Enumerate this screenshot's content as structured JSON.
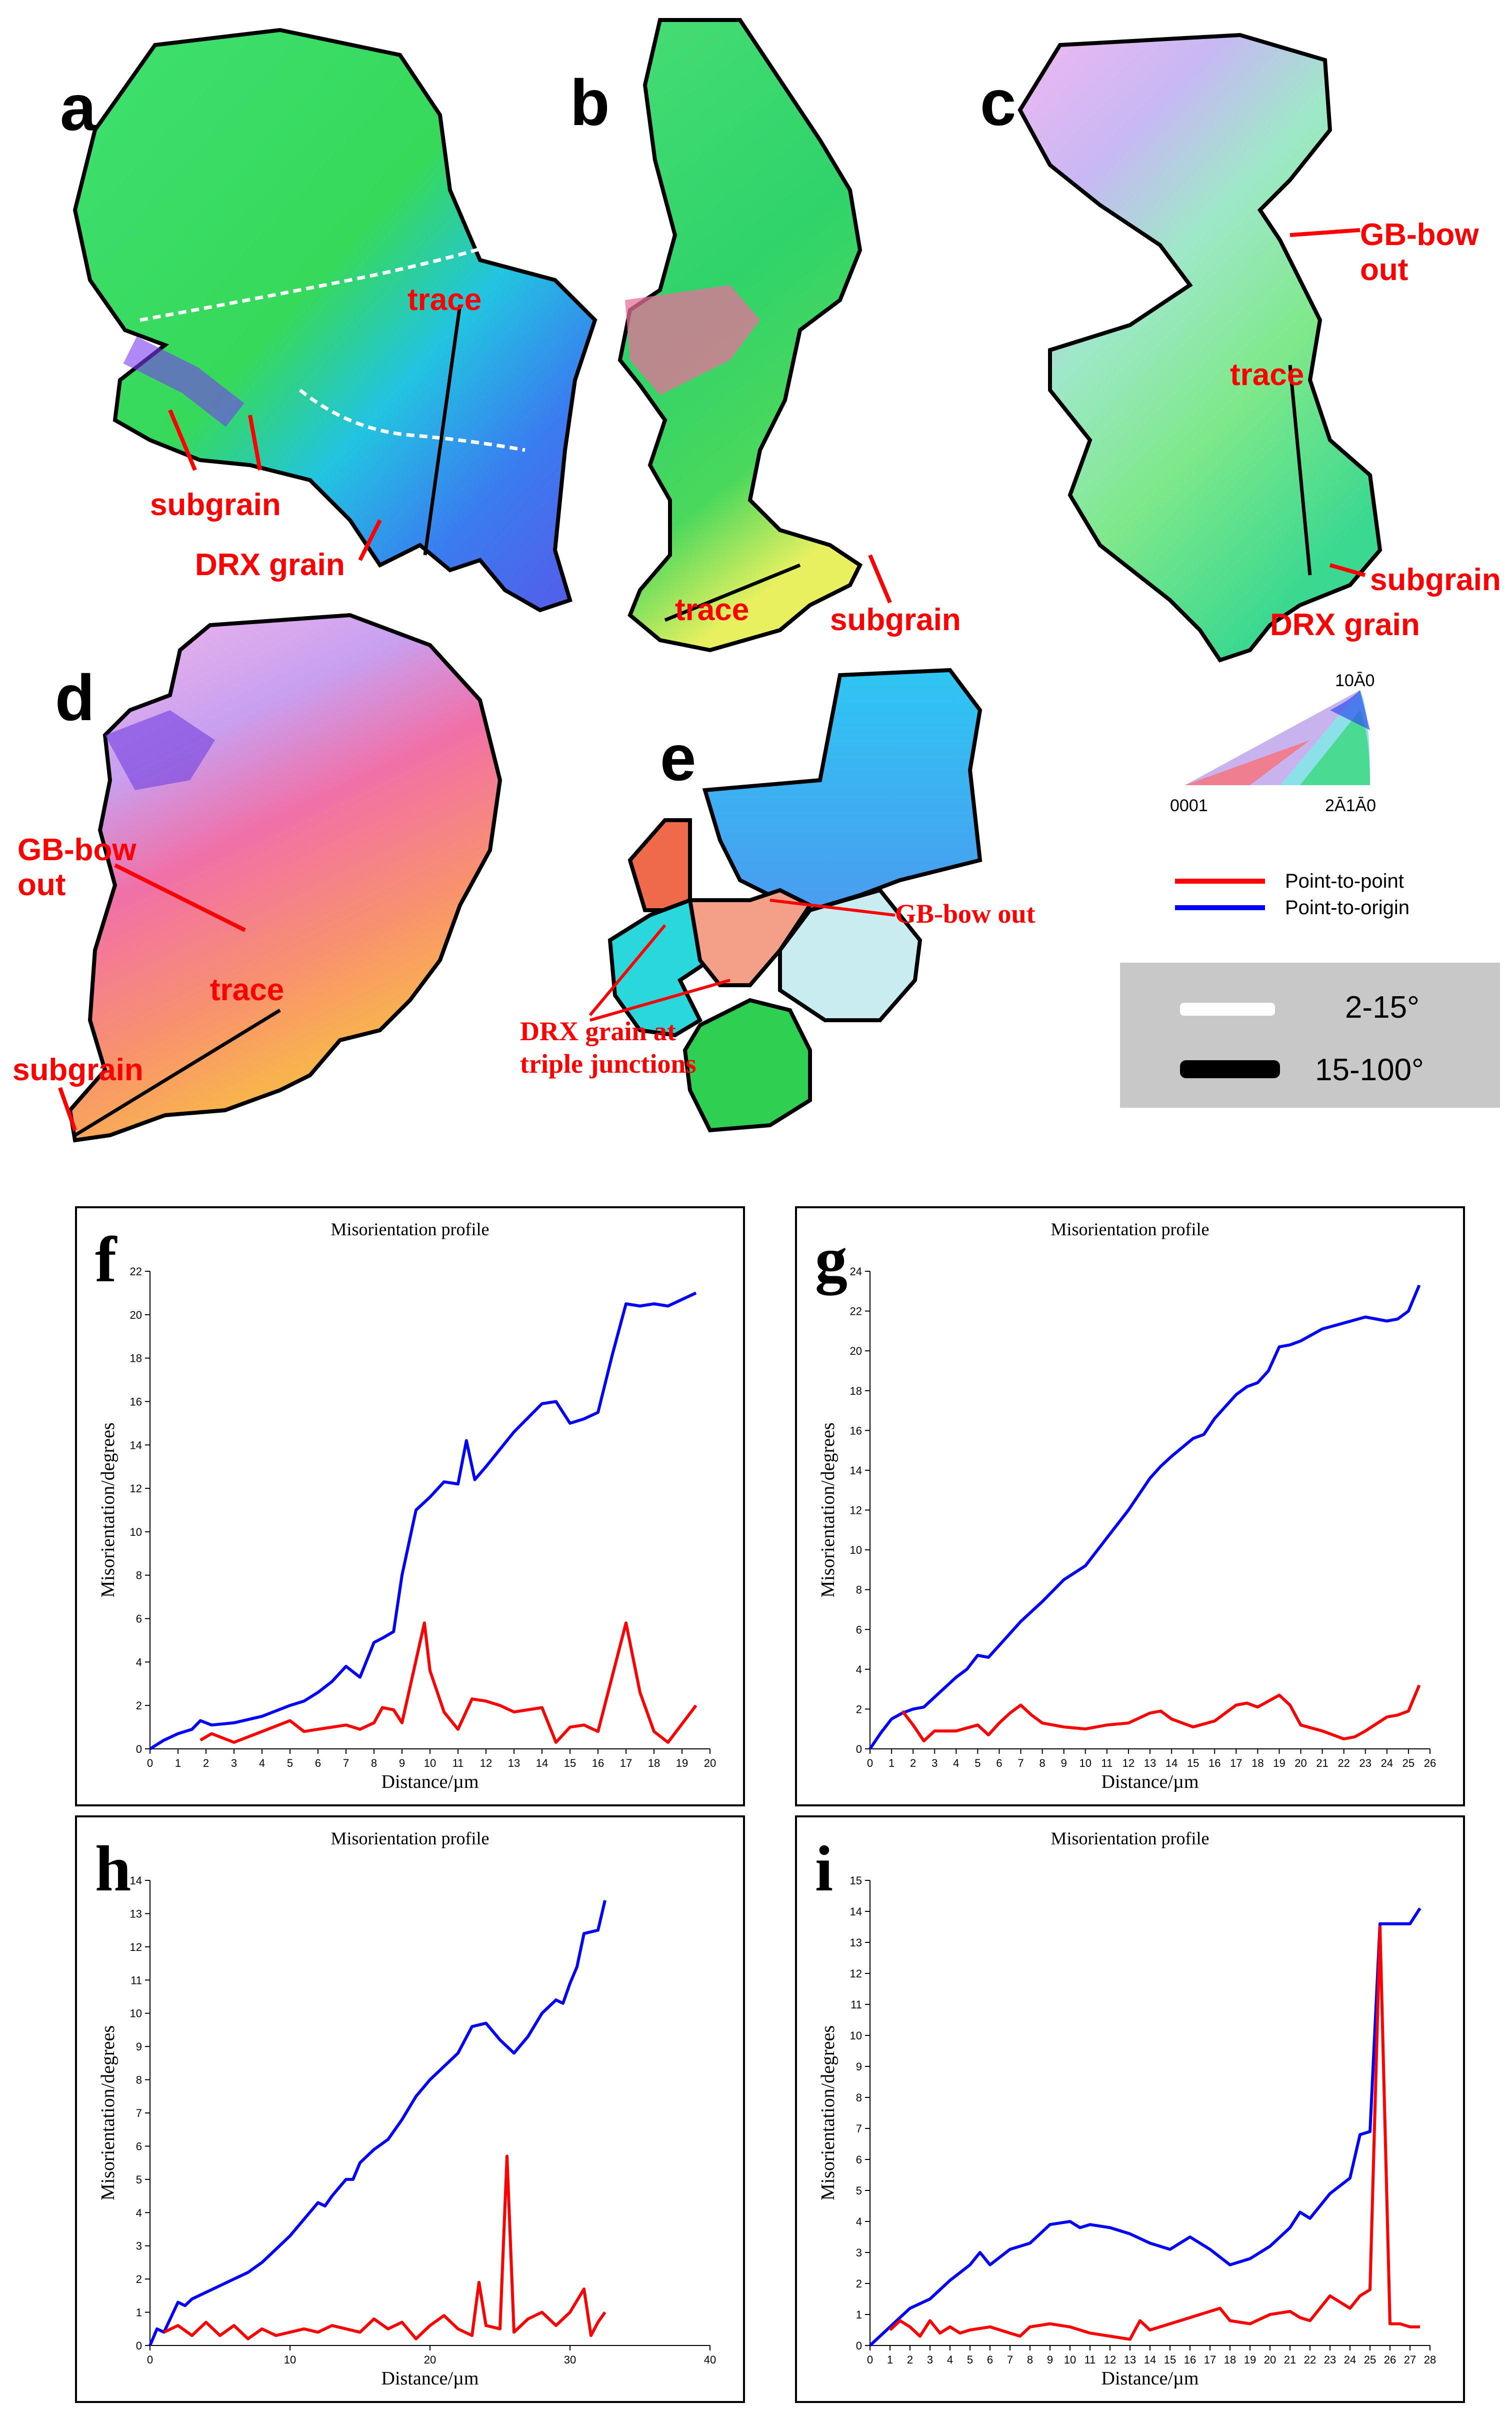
{
  "maps": {
    "panels": [
      {
        "letter": "a",
        "annotations": [
          "trace",
          "subgrain",
          "DRX grain"
        ]
      },
      {
        "letter": "b",
        "annotations": [
          "trace",
          "subgrain"
        ]
      },
      {
        "letter": "c",
        "annotations": [
          "GB-bow",
          "out",
          "trace",
          "subgrain",
          "DRX grain"
        ]
      },
      {
        "letter": "d",
        "annotations": [
          "GB-bow",
          "out",
          "trace",
          "subgrain"
        ]
      },
      {
        "letter": "e",
        "annotations": [
          "GB-bow out",
          "DRX grain at",
          "triple junctions"
        ]
      }
    ],
    "ipf_key": {
      "top": "10Ā0",
      "left": "0001",
      "right": "2Ā1Ā0"
    },
    "line_legend": [
      {
        "label": "Point-to-point",
        "color": "#ff0000"
      },
      {
        "label": "Point-to-origin",
        "color": "#0000ff"
      }
    ],
    "boundary_legend": [
      {
        "label": "2-15°",
        "color": "#ffffff"
      },
      {
        "label": "15-100°",
        "color": "#000000"
      }
    ]
  },
  "chart_data": [
    {
      "panel": "f",
      "type": "line",
      "title": "Misorientation profile",
      "xlabel": "Distance/µm",
      "ylabel": "Misorientation/degrees",
      "xlim": [
        0,
        20
      ],
      "ylim": [
        0,
        22
      ],
      "xticks": [
        0,
        1,
        2,
        3,
        4,
        5,
        6,
        7,
        8,
        9,
        10,
        11,
        12,
        13,
        14,
        15,
        16,
        17,
        18,
        19,
        20
      ],
      "yticks": [
        0,
        2,
        4,
        6,
        8,
        10,
        12,
        14,
        16,
        18,
        20,
        22
      ],
      "series": [
        {
          "name": "Point-to-origin",
          "color": "#0000ff",
          "x": [
            0,
            0.5,
            1,
            1.5,
            1.8,
            2.2,
            3,
            4,
            5,
            5.5,
            6,
            6.5,
            7,
            7.5,
            8,
            8.3,
            8.7,
            9,
            9.5,
            10,
            10.5,
            11,
            11.3,
            11.6,
            12,
            12.5,
            13,
            14,
            14.5,
            15,
            15.5,
            16,
            16.5,
            17,
            17.5,
            18,
            18.5,
            19,
            19.5
          ],
          "y": [
            0,
            0.4,
            0.7,
            0.9,
            1.3,
            1.1,
            1.2,
            1.5,
            2.0,
            2.2,
            2.6,
            3.1,
            3.8,
            3.3,
            4.9,
            5.1,
            5.4,
            8.0,
            11.0,
            11.6,
            12.3,
            12.2,
            14.2,
            12.4,
            13.0,
            13.8,
            14.6,
            15.9,
            16.0,
            15.0,
            15.2,
            15.5,
            18.1,
            20.5,
            20.4,
            20.5,
            20.4,
            20.7,
            21.0
          ]
        },
        {
          "name": "Point-to-point",
          "color": "#ff0000",
          "x": [
            1.8,
            2.2,
            3,
            4,
            5,
            5.5,
            6,
            7,
            7.5,
            8,
            8.3,
            8.7,
            9,
            9.8,
            10,
            10.5,
            11,
            11.5,
            12,
            12.5,
            13,
            13.5,
            14,
            14.5,
            15,
            15.5,
            16,
            17,
            17.5,
            18,
            18.5,
            19.5
          ],
          "y": [
            0.4,
            0.7,
            0.3,
            0.8,
            1.3,
            0.8,
            0.9,
            1.1,
            0.9,
            1.2,
            1.9,
            1.8,
            1.2,
            5.8,
            3.6,
            1.7,
            0.9,
            2.3,
            2.2,
            2.0,
            1.7,
            1.8,
            1.9,
            0.3,
            1.0,
            1.1,
            0.8,
            5.8,
            2.6,
            0.8,
            0.3,
            2.0
          ]
        }
      ]
    },
    {
      "panel": "g",
      "type": "line",
      "title": "Misorientation profile",
      "xlabel": "Distance/µm",
      "ylabel": "Misorientation/degrees",
      "xlim": [
        0,
        26
      ],
      "ylim": [
        0,
        24
      ],
      "xticks": [
        0,
        1,
        2,
        3,
        4,
        5,
        6,
        7,
        8,
        9,
        10,
        11,
        12,
        13,
        14,
        15,
        16,
        17,
        18,
        19,
        20,
        21,
        22,
        23,
        24,
        25,
        26
      ],
      "yticks": [
        0,
        2,
        4,
        6,
        8,
        10,
        12,
        14,
        16,
        18,
        20,
        22,
        24
      ],
      "series": [
        {
          "name": "Point-to-origin",
          "color": "#0000ff",
          "x": [
            0,
            0.5,
            1,
            1.5,
            2,
            2.5,
            3,
            4,
            4.5,
            5,
            5.5,
            6,
            7,
            8,
            9,
            10,
            11,
            12,
            13,
            13.5,
            14,
            15,
            15.5,
            16,
            17,
            17.5,
            18,
            18.5,
            19,
            19.5,
            20,
            21,
            22,
            23,
            24,
            24.5,
            25,
            25.5
          ],
          "y": [
            0,
            0.8,
            1.5,
            1.8,
            2.0,
            2.1,
            2.6,
            3.6,
            4.0,
            4.7,
            4.6,
            5.2,
            6.4,
            7.4,
            8.5,
            9.2,
            10.6,
            12.0,
            13.6,
            14.2,
            14.7,
            15.6,
            15.8,
            16.6,
            17.8,
            18.2,
            18.4,
            19.0,
            20.2,
            20.3,
            20.5,
            21.1,
            21.4,
            21.7,
            21.5,
            21.6,
            22.0,
            23.3
          ]
        },
        {
          "name": "Point-to-point",
          "color": "#ff0000",
          "x": [
            1.5,
            2,
            2.5,
            3,
            4,
            5,
            5.5,
            6,
            6.5,
            7,
            7.5,
            8,
            9,
            10,
            11,
            12,
            13,
            13.5,
            14,
            15,
            16,
            17,
            17.5,
            18,
            19,
            19.5,
            20,
            21,
            22,
            22.5,
            23,
            24,
            24.5,
            25,
            25.5
          ],
          "y": [
            1.9,
            1.2,
            0.4,
            0.9,
            0.9,
            1.2,
            0.7,
            1.3,
            1.8,
            2.2,
            1.7,
            1.3,
            1.1,
            1.0,
            1.2,
            1.3,
            1.8,
            1.9,
            1.5,
            1.1,
            1.4,
            2.2,
            2.3,
            2.1,
            2.7,
            2.2,
            1.2,
            0.9,
            0.5,
            0.6,
            0.9,
            1.6,
            1.7,
            1.9,
            3.2
          ]
        }
      ]
    },
    {
      "panel": "h",
      "type": "line",
      "title": "Misorientation profile",
      "xlabel": "Distance/µm",
      "ylabel": "Misorientation/degrees",
      "xlim": [
        0,
        40
      ],
      "ylim": [
        0,
        14
      ],
      "xticks": [
        0,
        10,
        20,
        30,
        40
      ],
      "yticks": [
        0,
        1,
        2,
        3,
        4,
        5,
        6,
        7,
        8,
        9,
        10,
        11,
        12,
        13,
        14
      ],
      "series": [
        {
          "name": "Point-to-origin",
          "color": "#0000ff",
          "x": [
            0,
            0.5,
            1,
            2,
            2.5,
            3,
            4,
            5,
            6,
            6.5,
            7,
            8,
            9,
            10,
            11,
            12,
            12.5,
            13,
            14,
            14.5,
            15,
            16,
            17,
            18,
            19,
            20,
            21,
            22,
            23,
            24,
            25,
            26,
            27,
            28,
            29,
            29.5,
            30,
            30.5,
            31,
            32,
            32.5
          ],
          "y": [
            0,
            0.5,
            0.4,
            1.3,
            1.2,
            1.4,
            1.6,
            1.8,
            2.0,
            2.1,
            2.2,
            2.5,
            2.9,
            3.3,
            3.8,
            4.3,
            4.2,
            4.5,
            5.0,
            5.0,
            5.5,
            5.9,
            6.2,
            6.8,
            7.5,
            8.0,
            8.4,
            8.8,
            9.6,
            9.7,
            9.2,
            8.8,
            9.3,
            10.0,
            10.4,
            10.3,
            10.9,
            11.4,
            12.4,
            12.5,
            13.4
          ]
        },
        {
          "name": "Point-to-point",
          "color": "#ff0000",
          "x": [
            1,
            2,
            3,
            4,
            5,
            6,
            7,
            8,
            9,
            10,
            11,
            12,
            13,
            14,
            15,
            16,
            17,
            18,
            19,
            20,
            21,
            22,
            23,
            23.5,
            24,
            25,
            25.5,
            26,
            27,
            28,
            29,
            30,
            31,
            31.5,
            32,
            32.5
          ],
          "y": [
            0.4,
            0.6,
            0.3,
            0.7,
            0.3,
            0.6,
            0.2,
            0.5,
            0.3,
            0.4,
            0.5,
            0.4,
            0.6,
            0.5,
            0.4,
            0.8,
            0.5,
            0.7,
            0.2,
            0.6,
            0.9,
            0.5,
            0.3,
            1.9,
            0.6,
            0.5,
            5.7,
            0.4,
            0.8,
            1.0,
            0.6,
            1.0,
            1.7,
            0.3,
            0.7,
            1.0
          ]
        }
      ]
    },
    {
      "panel": "i",
      "type": "line",
      "title": "Misorientation profile",
      "xlabel": "Distance/µm",
      "ylabel": "Misorientation/degrees",
      "xlim": [
        0,
        28
      ],
      "ylim": [
        0,
        15
      ],
      "xticks": [
        0,
        1,
        2,
        3,
        4,
        5,
        6,
        7,
        8,
        9,
        10,
        11,
        12,
        13,
        14,
        15,
        16,
        17,
        18,
        19,
        20,
        21,
        22,
        23,
        24,
        25,
        26,
        27,
        28
      ],
      "yticks": [
        0,
        1,
        2,
        3,
        4,
        5,
        6,
        7,
        8,
        9,
        10,
        11,
        12,
        13,
        14,
        15
      ],
      "series": [
        {
          "name": "Point-to-origin",
          "color": "#0000ff",
          "x": [
            0,
            1,
            2,
            3,
            4,
            5,
            5.5,
            6,
            7,
            8,
            9,
            10,
            10.5,
            11,
            12,
            13,
            14,
            15,
            16,
            17,
            18,
            19,
            20,
            21,
            21.5,
            22,
            23,
            24,
            24.5,
            25,
            25.5,
            26,
            27,
            27.5
          ],
          "y": [
            0,
            0.6,
            1.2,
            1.5,
            2.1,
            2.6,
            3.0,
            2.6,
            3.1,
            3.3,
            3.9,
            4.0,
            3.8,
            3.9,
            3.8,
            3.6,
            3.3,
            3.1,
            3.5,
            3.1,
            2.6,
            2.8,
            3.2,
            3.8,
            4.3,
            4.1,
            4.9,
            5.4,
            6.8,
            6.9,
            13.6,
            13.6,
            13.6,
            14.1
          ]
        },
        {
          "name": "Point-to-point",
          "color": "#ff0000",
          "x": [
            1,
            1.5,
            2,
            2.5,
            3,
            3.5,
            4,
            4.5,
            5,
            6,
            7,
            7.5,
            8,
            9,
            10,
            11,
            12,
            13,
            13.5,
            14,
            15,
            16,
            17,
            17.5,
            18,
            19,
            20,
            21,
            21.5,
            22,
            23,
            24,
            24.5,
            25,
            25.5,
            26,
            26.5,
            27,
            27.5
          ],
          "y": [
            0.5,
            0.8,
            0.6,
            0.3,
            0.8,
            0.4,
            0.6,
            0.4,
            0.5,
            0.6,
            0.4,
            0.3,
            0.6,
            0.7,
            0.6,
            0.4,
            0.3,
            0.2,
            0.8,
            0.5,
            0.7,
            0.9,
            1.1,
            1.2,
            0.8,
            0.7,
            1.0,
            1.1,
            0.9,
            0.8,
            1.6,
            1.2,
            1.6,
            1.8,
            13.5,
            0.7,
            0.7,
            0.6,
            0.6
          ]
        }
      ]
    }
  ]
}
